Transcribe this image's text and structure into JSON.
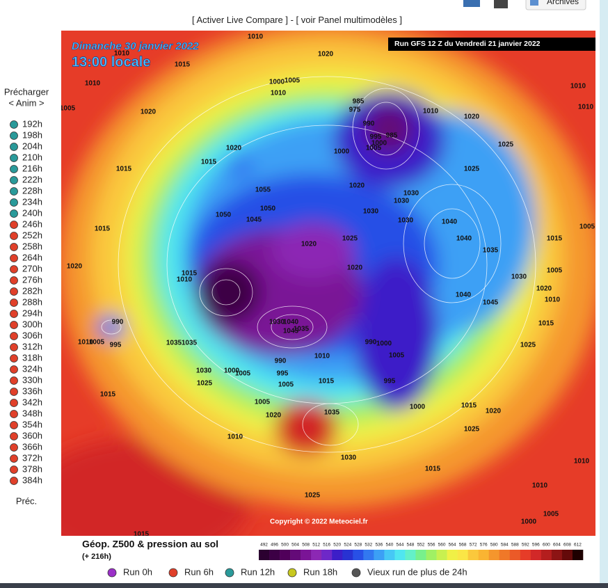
{
  "header": {
    "links": [
      "[",
      "Activer Live Compare",
      "] - [",
      "voir Panel multimodèles",
      "]"
    ],
    "archives": "Archives"
  },
  "sidebar": {
    "preload": "Précharger",
    "anim": "< Anim >",
    "prev": "Préc.",
    "hours": [
      {
        "label": "192h",
        "color": "#2a9a9a"
      },
      {
        "label": "198h",
        "color": "#2a9a9a"
      },
      {
        "label": "204h",
        "color": "#2a9a9a"
      },
      {
        "label": "210h",
        "color": "#2a9a9a"
      },
      {
        "label": "216h",
        "color": "#2a9a9a"
      },
      {
        "label": "222h",
        "color": "#2a9a9a"
      },
      {
        "label": "228h",
        "color": "#2a9a9a"
      },
      {
        "label": "234h",
        "color": "#2a9a9a"
      },
      {
        "label": "240h",
        "color": "#2a9a9a"
      },
      {
        "label": "246h",
        "color": "#e0402a"
      },
      {
        "label": "252h",
        "color": "#e0402a"
      },
      {
        "label": "258h",
        "color": "#e0402a"
      },
      {
        "label": "264h",
        "color": "#e0402a"
      },
      {
        "label": "270h",
        "color": "#e0402a"
      },
      {
        "label": "276h",
        "color": "#e0402a"
      },
      {
        "label": "282h",
        "color": "#e0402a"
      },
      {
        "label": "288h",
        "color": "#e0402a"
      },
      {
        "label": "294h",
        "color": "#e0402a"
      },
      {
        "label": "300h",
        "color": "#e0402a"
      },
      {
        "label": "306h",
        "color": "#e0402a"
      },
      {
        "label": "312h",
        "color": "#e0402a"
      },
      {
        "label": "318h",
        "color": "#e0402a"
      },
      {
        "label": "324h",
        "color": "#e0402a"
      },
      {
        "label": "330h",
        "color": "#e0402a"
      },
      {
        "label": "336h",
        "color": "#e0402a"
      },
      {
        "label": "342h",
        "color": "#e0402a"
      },
      {
        "label": "348h",
        "color": "#e0402a"
      },
      {
        "label": "354h",
        "color": "#e0402a"
      },
      {
        "label": "360h",
        "color": "#e0402a"
      },
      {
        "label": "366h",
        "color": "#e0402a"
      },
      {
        "label": "372h",
        "color": "#e0402a"
      },
      {
        "label": "378h",
        "color": "#e0402a"
      },
      {
        "label": "384h",
        "color": "#e0402a"
      }
    ]
  },
  "map": {
    "date": "Dimanche 30 janvier 2022",
    "time": "13:00 locale",
    "run": "Run GFS 12 Z du Vendredi 21 janvier 2022",
    "copyright": "Copyright © 2022 Meteociel.fr",
    "isobar_labels": [
      "1010",
      "1010",
      "1015",
      "1020",
      "1010",
      "1005",
      "1020",
      "1005",
      "1000",
      "1010",
      "985",
      "975",
      "990",
      "995",
      "985",
      "1000",
      "1005",
      "1000",
      "1010",
      "1020",
      "1025",
      "1025",
      "1020",
      "1015",
      "1015",
      "1020",
      "1030",
      "1030",
      "1030",
      "1030",
      "1040",
      "1050",
      "1045",
      "1050",
      "1055",
      "1015",
      "1020",
      "1025",
      "1040",
      "1035",
      "1020",
      "1020",
      "1015",
      "1010",
      "1030",
      "1040",
      "1045",
      "1010",
      "1015",
      "1025",
      "990",
      "1000",
      "1005",
      "995",
      "1010",
      "1015",
      "1000",
      "1015",
      "1020",
      "1025",
      "1035",
      "1020",
      "1005",
      "1030",
      "1015",
      "1010",
      "1015",
      "1025",
      "1010",
      "1010",
      "1005",
      "1000",
      "1015",
      "1010",
      "1010",
      "1005",
      "1015",
      "1005",
      "1020",
      "1030",
      "1025",
      "1000",
      "1005",
      "990",
      "995",
      "1005",
      "1035",
      "1035",
      "1010",
      "1005",
      "995",
      "990",
      "1030",
      "1040",
      "1045",
      "1035"
    ]
  },
  "colorbar": {
    "title": "Géop. Z500 & pression au sol",
    "lead": "(+ 216h)",
    "ticks": [
      492,
      496,
      500,
      504,
      508,
      512,
      516,
      520,
      524,
      528,
      532,
      536,
      540,
      544,
      548,
      552,
      556,
      560,
      564,
      568,
      572,
      576,
      580,
      584,
      588,
      592,
      596,
      600,
      604,
      608,
      612
    ],
    "colors": [
      "#2b0030",
      "#3c0045",
      "#50005a",
      "#640a78",
      "#7a1496",
      "#8c28b4",
      "#6e28c8",
      "#3c1ec8",
      "#2832d2",
      "#2850e6",
      "#3278f0",
      "#3ca0f5",
      "#46c8f5",
      "#50e6f0",
      "#64f0c8",
      "#78f08c",
      "#a0f064",
      "#c8f050",
      "#f0f046",
      "#fae646",
      "#fac83c",
      "#fab432",
      "#f5962d",
      "#f07828",
      "#eb5a28",
      "#e63c28",
      "#d22828",
      "#b41e1e",
      "#8c1414",
      "#640a0a",
      "#1e0000"
    ]
  },
  "legend": [
    {
      "label": "Run 0h",
      "color": "#9b30c8"
    },
    {
      "label": "Run 6h",
      "color": "#e0402a"
    },
    {
      "label": "Run 12h",
      "color": "#2a9a9a"
    },
    {
      "label": "Run 18h",
      "color": "#c8c820"
    },
    {
      "label": "Vieux run de plus de 24h",
      "color": "#555555"
    }
  ]
}
